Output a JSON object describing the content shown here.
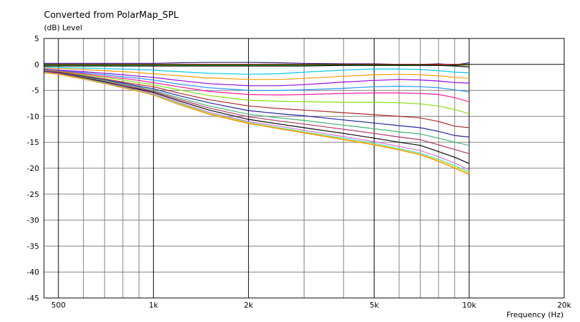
{
  "chart_data": {
    "type": "line",
    "title": "Converted from PolarMap_SPL",
    "ylabel": "(dB)  Level",
    "xlabel": "Frequency  (Hz)",
    "x_scale": "log",
    "xlim": [
      450,
      20000
    ],
    "ylim": [
      -45,
      5
    ],
    "grid": true,
    "legend": "none",
    "x_ticks": [
      {
        "value": 500,
        "label": "500"
      },
      {
        "value": 1000,
        "label": "1k"
      },
      {
        "value": 2000,
        "label": "2k"
      },
      {
        "value": 5000,
        "label": "5k"
      },
      {
        "value": 10000,
        "label": "10k"
      },
      {
        "value": 20000,
        "label": "20k"
      }
    ],
    "x_minor": [
      600,
      700,
      800,
      900,
      3000,
      4000,
      6000,
      7000,
      8000,
      9000
    ],
    "y_ticks": [
      5,
      0,
      -5,
      -10,
      -15,
      -20,
      -25,
      -30,
      -35,
      -40,
      -45
    ],
    "x": [
      450,
      500,
      600,
      700,
      800,
      900,
      1000,
      1200,
      1500,
      2000,
      2500,
      3000,
      4000,
      5000,
      6000,
      7000,
      8000,
      9000,
      10000
    ],
    "series": [
      {
        "color": "#1a1a7a",
        "values": [
          0.2,
          0.2,
          0.2,
          0.2,
          0.2,
          0.2,
          0.2,
          0.3,
          0.4,
          0.4,
          0.3,
          0.2,
          0.1,
          0.1,
          0.0,
          0.0,
          0.1,
          -0.1,
          0.3
        ]
      },
      {
        "color": "#c00000",
        "values": [
          0.0,
          0.0,
          0.0,
          0.0,
          0.0,
          0.0,
          0.0,
          0.0,
          0.0,
          0.0,
          0.0,
          0.0,
          0.0,
          0.0,
          0.0,
          0.0,
          0.0,
          0.0,
          0.0
        ]
      },
      {
        "color": "#008000",
        "values": [
          -0.1,
          -0.1,
          -0.1,
          -0.1,
          -0.1,
          -0.1,
          -0.1,
          -0.1,
          -0.1,
          -0.1,
          -0.1,
          -0.1,
          -0.1,
          -0.1,
          -0.1,
          -0.1,
          -0.2,
          -0.2,
          -0.1
        ]
      },
      {
        "color": "#000000",
        "values": [
          -0.3,
          -0.3,
          -0.3,
          -0.3,
          -0.3,
          -0.3,
          -0.3,
          -0.3,
          -0.3,
          -0.3,
          -0.3,
          -0.3,
          -0.2,
          -0.2,
          -0.2,
          -0.2,
          -0.2,
          -0.3,
          -0.5
        ]
      },
      {
        "color": "#00c8e6",
        "values": [
          -0.5,
          -0.6,
          -0.7,
          -0.8,
          -0.9,
          -1.0,
          -1.1,
          -1.4,
          -1.7,
          -1.9,
          -1.8,
          -1.5,
          -1.1,
          -0.9,
          -0.9,
          -1.0,
          -1.2,
          -1.5,
          -1.6
        ]
      },
      {
        "color": "#ff9900",
        "values": [
          -0.7,
          -0.8,
          -1.0,
          -1.2,
          -1.4,
          -1.6,
          -1.8,
          -2.2,
          -2.6,
          -2.9,
          -2.9,
          -2.7,
          -2.3,
          -2.0,
          -1.9,
          -2.0,
          -2.2,
          -2.5,
          -2.7
        ]
      },
      {
        "color": "#9400d3",
        "values": [
          -0.9,
          -1.1,
          -1.4,
          -1.7,
          -2.0,
          -2.3,
          -2.5,
          -3.1,
          -3.7,
          -4.1,
          -4.1,
          -3.9,
          -3.4,
          -3.1,
          -2.9,
          -3.0,
          -3.2,
          -3.5,
          -3.6
        ]
      },
      {
        "color": "#1e90ff",
        "values": [
          -1.0,
          -1.2,
          -1.6,
          -2.0,
          -2.4,
          -2.7,
          -3.0,
          -3.8,
          -4.5,
          -5.0,
          -5.0,
          -4.9,
          -4.6,
          -4.3,
          -4.2,
          -4.3,
          -4.5,
          -4.9,
          -5.3
        ]
      },
      {
        "color": "#ff1493",
        "values": [
          -1.1,
          -1.3,
          -1.8,
          -2.3,
          -2.7,
          -3.1,
          -3.5,
          -4.3,
          -5.2,
          -5.8,
          -5.9,
          -5.8,
          -5.6,
          -5.5,
          -5.5,
          -5.6,
          -5.8,
          -6.4,
          -7.2
        ]
      },
      {
        "color": "#7fe000",
        "values": [
          -1.2,
          -1.4,
          -2.0,
          -2.5,
          -3.0,
          -3.5,
          -3.9,
          -4.9,
          -6.0,
          -6.9,
          -7.1,
          -7.2,
          -7.3,
          -7.3,
          -7.4,
          -7.6,
          -8.0,
          -8.7,
          -9.5
        ]
      },
      {
        "color": "#b22222",
        "values": [
          -1.3,
          -1.5,
          -2.2,
          -2.8,
          -3.4,
          -3.9,
          -4.3,
          -5.5,
          -6.8,
          -8.0,
          -8.5,
          -8.8,
          -9.3,
          -9.7,
          -10.0,
          -10.3,
          -11.0,
          -11.9,
          -12.2
        ]
      },
      {
        "color": "#2020a0",
        "values": [
          -1.3,
          -1.6,
          -2.3,
          -3.0,
          -3.6,
          -4.2,
          -4.7,
          -6.0,
          -7.4,
          -8.9,
          -9.5,
          -9.9,
          -10.7,
          -11.3,
          -11.8,
          -12.2,
          -12.9,
          -13.7,
          -14.0
        ]
      },
      {
        "color": "#3cb371",
        "values": [
          -1.4,
          -1.7,
          -2.4,
          -3.1,
          -3.8,
          -4.4,
          -5.0,
          -6.4,
          -8.0,
          -9.6,
          -10.3,
          -10.8,
          -11.7,
          -12.4,
          -13.0,
          -13.4,
          -14.2,
          -15.0,
          -15.6
        ]
      },
      {
        "color": "#b03060",
        "values": [
          -1.4,
          -1.7,
          -2.5,
          -3.3,
          -4.0,
          -4.6,
          -5.2,
          -6.7,
          -8.4,
          -10.1,
          -10.9,
          -11.5,
          -12.5,
          -13.3,
          -14.0,
          -14.5,
          -15.5,
          -16.4,
          -17.2
        ]
      },
      {
        "color": "#000000",
        "values": [
          -1.5,
          -1.8,
          -2.6,
          -3.4,
          -4.2,
          -4.8,
          -5.4,
          -7.0,
          -8.8,
          -10.6,
          -11.5,
          -12.2,
          -13.3,
          -14.2,
          -15.0,
          -15.6,
          -16.8,
          -17.9,
          -19.1
        ]
      },
      {
        "color": "#da70d6",
        "values": [
          -1.5,
          -1.8,
          -2.7,
          -3.5,
          -4.3,
          -5.0,
          -5.6,
          -7.3,
          -9.2,
          -11.0,
          -11.9,
          -12.7,
          -13.9,
          -14.9,
          -15.8,
          -16.6,
          -17.8,
          -19.0,
          -20.3
        ]
      },
      {
        "color": "#40e0d0",
        "values": [
          -1.5,
          -1.9,
          -2.7,
          -3.6,
          -4.4,
          -5.1,
          -5.8,
          -7.5,
          -9.4,
          -11.2,
          -12.2,
          -13.0,
          -14.2,
          -15.2,
          -16.2,
          -17.1,
          -18.3,
          -19.5,
          -20.7
        ]
      },
      {
        "color": "#e8e000",
        "values": [
          -1.6,
          -1.9,
          -2.8,
          -3.7,
          -4.5,
          -5.2,
          -5.9,
          -7.6,
          -9.5,
          -11.3,
          -12.3,
          -13.1,
          -14.4,
          -15.4,
          -16.4,
          -17.3,
          -18.5,
          -19.8,
          -21.0
        ]
      },
      {
        "color": "#ff8c00",
        "values": [
          -1.6,
          -1.9,
          -2.8,
          -3.7,
          -4.5,
          -5.2,
          -5.9,
          -7.7,
          -9.6,
          -11.4,
          -12.4,
          -13.2,
          -14.5,
          -15.5,
          -16.5,
          -17.4,
          -18.7,
          -20.0,
          -21.2
        ]
      }
    ]
  }
}
